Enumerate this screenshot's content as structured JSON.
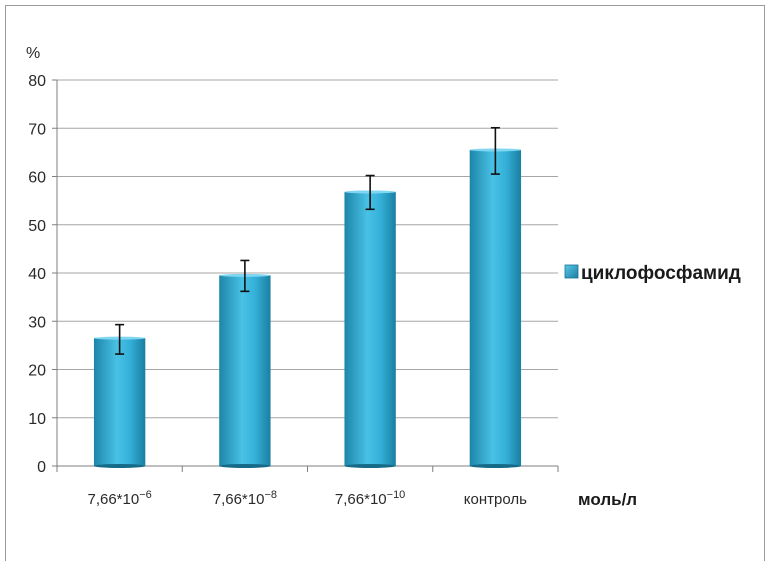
{
  "chart_data": {
    "type": "bar",
    "categories": [
      "7,66*10",
      "7,66*10",
      "7,66*10",
      "контроль"
    ],
    "category_exponents": [
      "−6",
      "−8",
      "−10",
      ""
    ],
    "series": [
      {
        "name": "циклофосфамид",
        "values": [
          26.5,
          39.5,
          56.8,
          65.5
        ],
        "error_low": [
          23.2,
          36.2,
          53.2,
          60.5
        ],
        "error_high": [
          29.3,
          42.6,
          60.2,
          70.1
        ],
        "color": "#2a9cc0"
      }
    ],
    "ylabel": "%",
    "xlabel": "моль/л",
    "ylim": [
      0,
      80
    ],
    "yticks": [
      "0",
      "10",
      "20",
      "30",
      "40",
      "50",
      "60",
      "70",
      "80"
    ],
    "grid": true,
    "legend": "right"
  }
}
